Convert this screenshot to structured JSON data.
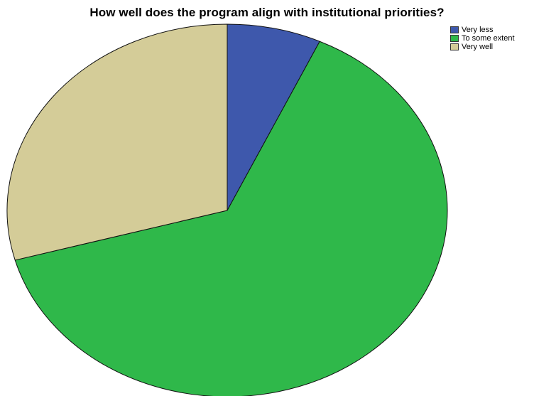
{
  "chart_data": {
    "type": "pie",
    "title": "How well does the program align with institutional priorities?",
    "slices": [
      {
        "label": "Very less",
        "value": 6.9,
        "color": "#3e58ac"
      },
      {
        "label": "To some extent",
        "value": 63.8,
        "color": "#2fb84a"
      },
      {
        "label": "Very well",
        "value": 29.3,
        "color": "#d4cc98"
      }
    ],
    "start": "12 o'clock, clockwise",
    "legend_position": "top-right"
  }
}
